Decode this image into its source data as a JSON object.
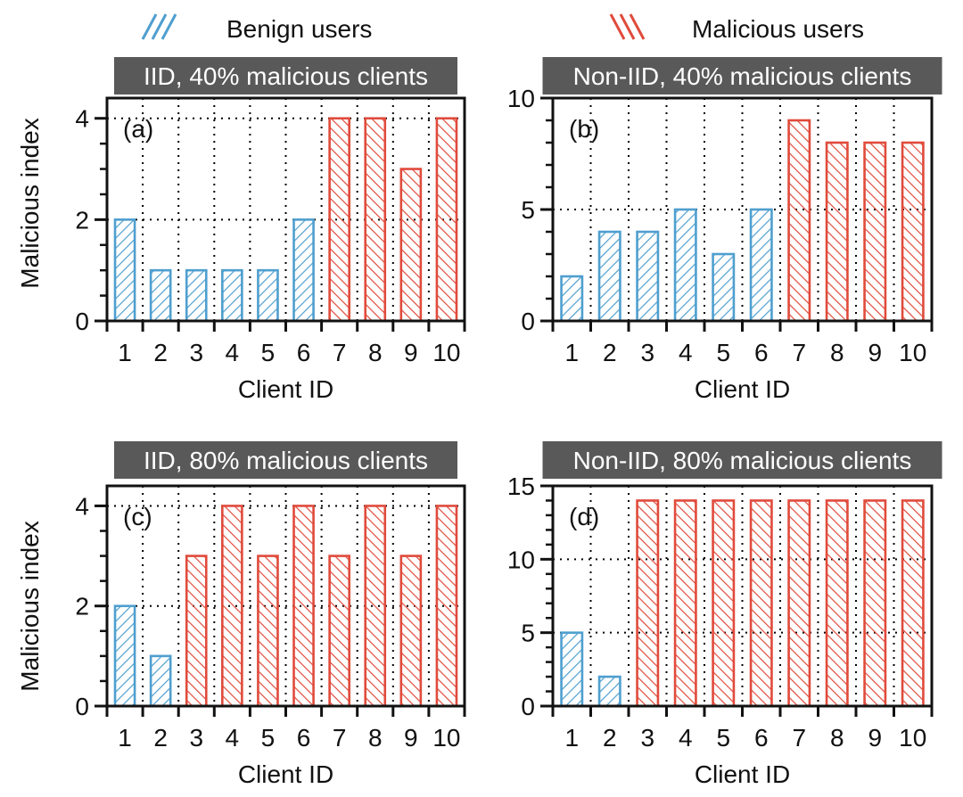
{
  "legend": {
    "benign_label": "Benign users",
    "malicious_label": "Malicious users",
    "benign_color": "#4f9fcf",
    "malicious_color": "#e04b3c"
  },
  "colors": {
    "title_bg": "#595959",
    "title_fg": "#ffffff",
    "axis": "#111111",
    "grid": "#000000"
  },
  "chart_data": [
    {
      "type": "bar",
      "panel": "(a)",
      "title": "IID, 40% malicious clients",
      "xlabel": "Client ID",
      "ylabel": "Malicious index",
      "categories": [
        "1",
        "2",
        "3",
        "4",
        "5",
        "6",
        "7",
        "8",
        "9",
        "10"
      ],
      "values": [
        2,
        1,
        1,
        1,
        1,
        2,
        4,
        4,
        3,
        4
      ],
      "groups": [
        "benign",
        "benign",
        "benign",
        "benign",
        "benign",
        "benign",
        "malicious",
        "malicious",
        "malicious",
        "malicious"
      ],
      "ylim": [
        0,
        4.4
      ],
      "yticks": [
        0,
        2,
        4
      ],
      "ytick_labels": [
        "0",
        "2",
        "4"
      ],
      "minor_ticks": [
        0.5,
        1,
        1.5,
        2.5,
        3,
        3.5
      ],
      "grid": true
    },
    {
      "type": "bar",
      "panel": "(b)",
      "title": "Non-IID, 40% malicious clients",
      "xlabel": "Client ID",
      "ylabel": "",
      "categories": [
        "1",
        "2",
        "3",
        "4",
        "5",
        "6",
        "7",
        "8",
        "9",
        "10"
      ],
      "values": [
        2,
        4,
        4,
        5,
        3,
        5,
        9,
        8,
        8,
        8
      ],
      "groups": [
        "benign",
        "benign",
        "benign",
        "benign",
        "benign",
        "benign",
        "malicious",
        "malicious",
        "malicious",
        "malicious"
      ],
      "ylim": [
        0,
        10
      ],
      "yticks": [
        0,
        5,
        10
      ],
      "ytick_labels": [
        "0",
        "5",
        "10"
      ],
      "minor_ticks": [
        1,
        2,
        3,
        4,
        6,
        7,
        8,
        9
      ],
      "grid": true
    },
    {
      "type": "bar",
      "panel": "(c)",
      "title": "IID, 80% malicious clients",
      "xlabel": "Client ID",
      "ylabel": "Malicious index",
      "categories": [
        "1",
        "2",
        "3",
        "4",
        "5",
        "6",
        "7",
        "8",
        "9",
        "10"
      ],
      "values": [
        2,
        1,
        3,
        4,
        3,
        4,
        3,
        4,
        3,
        4
      ],
      "groups": [
        "benign",
        "benign",
        "malicious",
        "malicious",
        "malicious",
        "malicious",
        "malicious",
        "malicious",
        "malicious",
        "malicious"
      ],
      "ylim": [
        0,
        4.4
      ],
      "yticks": [
        0,
        2,
        4
      ],
      "ytick_labels": [
        "0",
        "2",
        "4"
      ],
      "minor_ticks": [
        0.5,
        1,
        1.5,
        2.5,
        3,
        3.5
      ],
      "grid": true
    },
    {
      "type": "bar",
      "panel": "(d)",
      "title": "Non-IID, 80% malicious clients",
      "xlabel": "Client ID",
      "ylabel": "",
      "categories": [
        "1",
        "2",
        "3",
        "4",
        "5",
        "6",
        "7",
        "8",
        "9",
        "10"
      ],
      "values": [
        5,
        2,
        14,
        14,
        14,
        14,
        14,
        14,
        14,
        14
      ],
      "groups": [
        "benign",
        "benign",
        "malicious",
        "malicious",
        "malicious",
        "malicious",
        "malicious",
        "malicious",
        "malicious",
        "malicious"
      ],
      "ylim": [
        0,
        15
      ],
      "yticks": [
        0,
        5,
        10,
        15
      ],
      "ytick_labels": [
        "0",
        "5",
        "10",
        "15"
      ],
      "minor_ticks": [
        1,
        2,
        3,
        4,
        6,
        7,
        8,
        9,
        11,
        12,
        13,
        14
      ],
      "grid": true
    }
  ]
}
